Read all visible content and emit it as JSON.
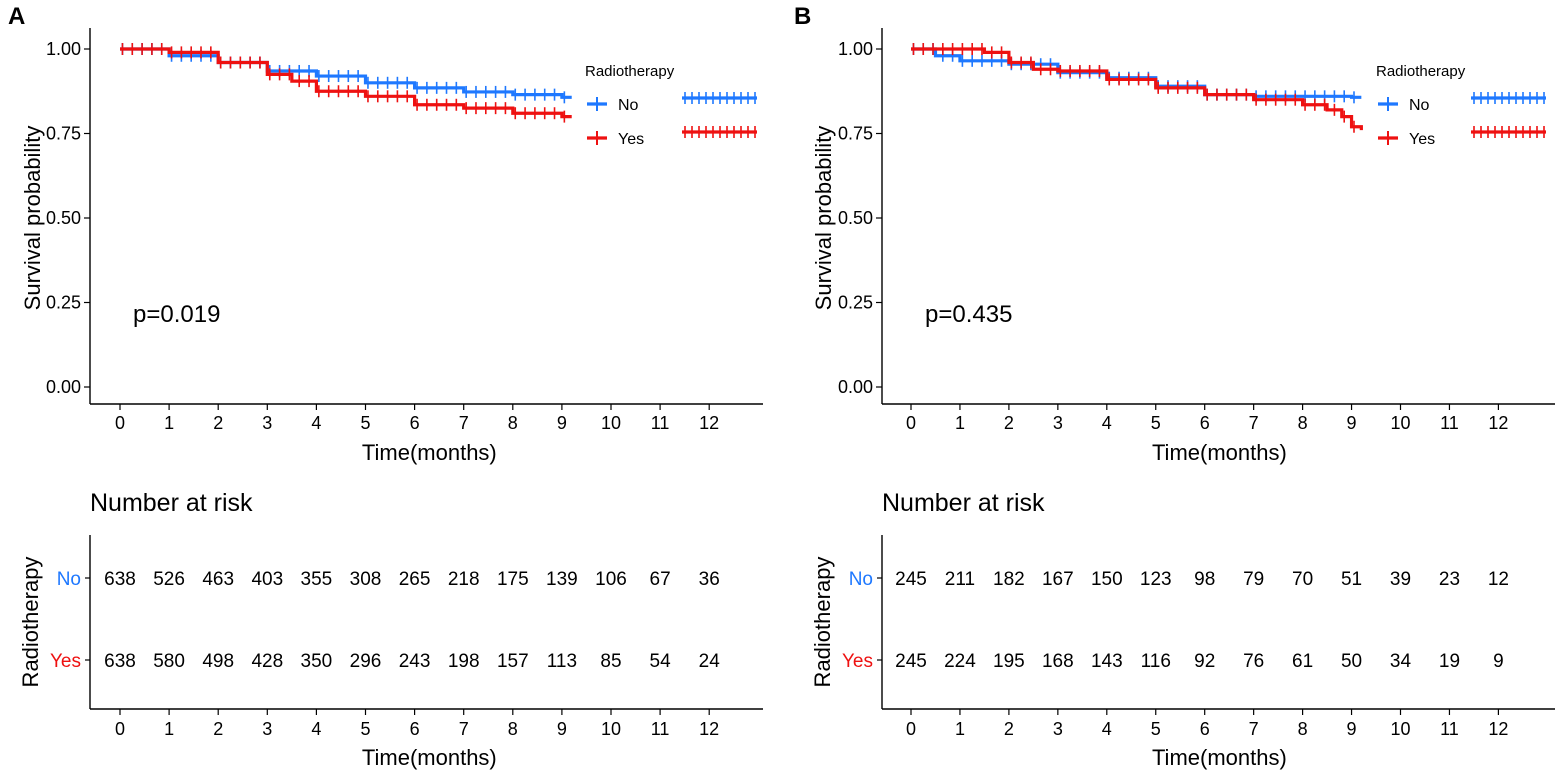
{
  "chart_data": [
    {
      "type": "line",
      "panel_label": "A",
      "xlabel": "Time(months)",
      "ylabel": "Survival probability",
      "x_ticks": [
        "0",
        "1",
        "2",
        "3",
        "4",
        "5",
        "6",
        "7",
        "8",
        "9",
        "10",
        "11",
        "12"
      ],
      "y_ticks": [
        "0.00",
        "0.25",
        "0.50",
        "0.75",
        "1.00"
      ],
      "xlim": [
        -0.6,
        13.2
      ],
      "ylim": [
        0,
        1
      ],
      "p_value": "p=0.019",
      "legend": {
        "title": "Radiotherapy",
        "position": "top-right",
        "entries": [
          "No",
          "Yes"
        ]
      },
      "series": [
        {
          "name": "No",
          "color": "#1e78ff",
          "x": [
            0,
            1,
            2,
            3,
            4,
            5,
            6,
            7,
            8,
            9,
            9.2
          ],
          "y": [
            1.0,
            0.98,
            0.96,
            0.935,
            0.92,
            0.9,
            0.885,
            0.873,
            0.865,
            0.857,
            0.857
          ]
        },
        {
          "name": "Yes",
          "color": "#ee1111",
          "x": [
            0,
            1,
            2,
            3,
            3.5,
            4,
            5,
            6,
            7,
            8,
            9,
            9.2
          ],
          "y": [
            1.0,
            0.99,
            0.96,
            0.925,
            0.905,
            0.875,
            0.86,
            0.835,
            0.825,
            0.81,
            0.8,
            0.8
          ]
        }
      ],
      "risk_table": {
        "title": "Number at risk",
        "ylabel": "Radiotherapy",
        "xlabel": "Time(months)",
        "rows": [
          {
            "name": "No",
            "color": "#1e78ff",
            "values": [
              "638",
              "526",
              "463",
              "403",
              "355",
              "308",
              "265",
              "218",
              "175",
              "139",
              "106",
              "67",
              "36"
            ]
          },
          {
            "name": "Yes",
            "color": "#ee1111",
            "values": [
              "638",
              "580",
              "498",
              "428",
              "350",
              "296",
              "243",
              "198",
              "157",
              "113",
              "85",
              "54",
              "24"
            ]
          }
        ]
      }
    },
    {
      "type": "line",
      "panel_label": "B",
      "xlabel": "Time(months)",
      "ylabel": "Survival probability",
      "x_ticks": [
        "0",
        "1",
        "2",
        "3",
        "4",
        "5",
        "6",
        "7",
        "8",
        "9",
        "10",
        "11",
        "12"
      ],
      "y_ticks": [
        "0.00",
        "0.25",
        "0.50",
        "0.75",
        "1.00"
      ],
      "xlim": [
        -0.6,
        13.2
      ],
      "ylim": [
        0,
        1
      ],
      "p_value": "p=0.435",
      "legend": {
        "title": "Radiotherapy",
        "position": "top-right",
        "entries": [
          "No",
          "Yes"
        ]
      },
      "series": [
        {
          "name": "No",
          "color": "#1e78ff",
          "x": [
            0,
            0.5,
            1,
            2,
            3,
            4,
            5,
            6,
            7,
            7.5,
            8,
            9,
            9.2
          ],
          "y": [
            1.0,
            0.98,
            0.965,
            0.955,
            0.93,
            0.915,
            0.89,
            0.865,
            0.86,
            0.86,
            0.86,
            0.857,
            0.857
          ]
        },
        {
          "name": "Yes",
          "color": "#ee1111",
          "x": [
            0,
            1,
            1.5,
            2,
            2.5,
            3,
            4,
            5,
            6,
            7,
            8,
            8.5,
            8.8,
            9,
            9.2
          ],
          "y": [
            1.0,
            1.0,
            0.99,
            0.96,
            0.94,
            0.935,
            0.91,
            0.885,
            0.865,
            0.85,
            0.835,
            0.82,
            0.8,
            0.77,
            0.76
          ]
        }
      ],
      "risk_table": {
        "title": "Number at risk",
        "ylabel": "Radiotherapy",
        "xlabel": "Time(months)",
        "rows": [
          {
            "name": "No",
            "color": "#1e78ff",
            "values": [
              "245",
              "211",
              "182",
              "167",
              "150",
              "123",
              "98",
              "79",
              "70",
              "51",
              "39",
              "23",
              "12"
            ]
          },
          {
            "name": "Yes",
            "color": "#ee1111",
            "values": [
              "245",
              "224",
              "195",
              "168",
              "143",
              "116",
              "92",
              "76",
              "61",
              "50",
              "34",
              "19",
              "9"
            ]
          }
        ]
      }
    }
  ]
}
